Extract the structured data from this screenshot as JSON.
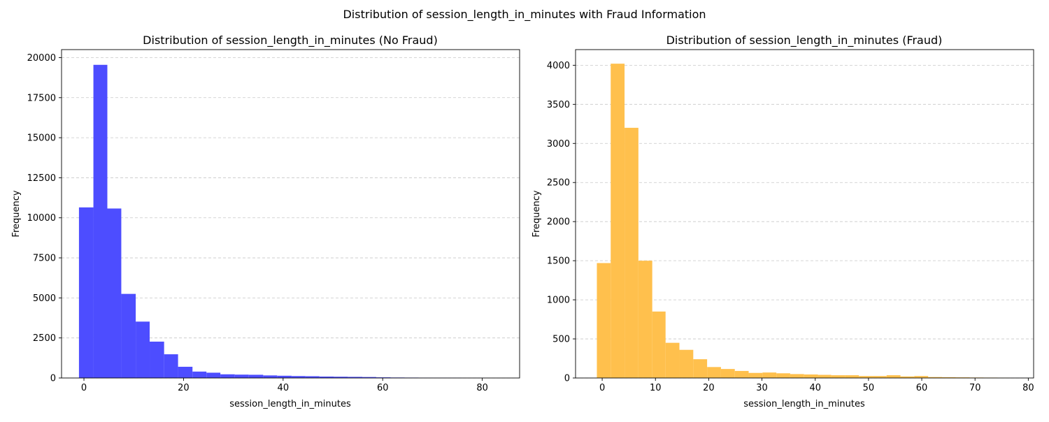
{
  "figure": {
    "suptitle": "Distribution of session_length_in_minutes with Fraud Information"
  },
  "chart_data": [
    {
      "type": "bar",
      "title": "Distribution of session_length_in_minutes (No Fraud)",
      "xlabel": "session_length_in_minutes",
      "ylabel": "Frequency",
      "color": "#4d4dff",
      "grid": "y-dashed",
      "xlim": [
        -4.5,
        87.5
      ],
      "ylim": [
        0,
        20500
      ],
      "xticks": [
        0,
        20,
        40,
        60,
        80
      ],
      "yticks": [
        0,
        2500,
        5000,
        7500,
        10000,
        12500,
        15000,
        17500,
        20000
      ],
      "bins": [
        {
          "x0": -1.0,
          "x1": 1.9,
          "count": 10650
        },
        {
          "x0": 1.9,
          "x1": 4.7,
          "count": 19550
        },
        {
          "x0": 4.7,
          "x1": 7.5,
          "count": 10580
        },
        {
          "x0": 7.5,
          "x1": 10.4,
          "count": 5250
        },
        {
          "x0": 10.4,
          "x1": 13.2,
          "count": 3520
        },
        {
          "x0": 13.2,
          "x1": 16.1,
          "count": 2270
        },
        {
          "x0": 16.1,
          "x1": 18.9,
          "count": 1480
        },
        {
          "x0": 18.9,
          "x1": 21.8,
          "count": 700
        },
        {
          "x0": 21.8,
          "x1": 24.6,
          "count": 400
        },
        {
          "x0": 24.6,
          "x1": 27.4,
          "count": 330
        },
        {
          "x0": 27.4,
          "x1": 30.3,
          "count": 230
        },
        {
          "x0": 30.3,
          "x1": 33.1,
          "count": 210
        },
        {
          "x0": 33.1,
          "x1": 36.0,
          "count": 200
        },
        {
          "x0": 36.0,
          "x1": 38.8,
          "count": 160
        },
        {
          "x0": 38.8,
          "x1": 41.7,
          "count": 140
        },
        {
          "x0": 41.7,
          "x1": 44.5,
          "count": 120
        },
        {
          "x0": 44.5,
          "x1": 47.3,
          "count": 110
        },
        {
          "x0": 47.3,
          "x1": 50.2,
          "count": 90
        },
        {
          "x0": 50.2,
          "x1": 53.0,
          "count": 80
        },
        {
          "x0": 53.0,
          "x1": 55.9,
          "count": 70
        },
        {
          "x0": 55.9,
          "x1": 58.7,
          "count": 60
        },
        {
          "x0": 58.7,
          "x1": 61.6,
          "count": 40
        },
        {
          "x0": 61.6,
          "x1": 64.4,
          "count": 30
        },
        {
          "x0": 64.4,
          "x1": 67.2,
          "count": 25
        },
        {
          "x0": 67.2,
          "x1": 70.1,
          "count": 20
        },
        {
          "x0": 70.1,
          "x1": 72.9,
          "count": 15
        },
        {
          "x0": 72.9,
          "x1": 75.8,
          "count": 12
        },
        {
          "x0": 75.8,
          "x1": 78.6,
          "count": 6
        },
        {
          "x0": 78.6,
          "x1": 81.5,
          "count": 4
        },
        {
          "x0": 81.5,
          "x1": 84.3,
          "count": 2
        }
      ]
    },
    {
      "type": "bar",
      "title": "Distribution of session_length_in_minutes (Fraud)",
      "xlabel": "session_length_in_minutes",
      "ylabel": "Frequency",
      "color": "#ffc04d",
      "grid": "y-dashed",
      "xlim": [
        -5.0,
        81.0
      ],
      "ylim": [
        0,
        4200
      ],
      "xticks": [
        0,
        10,
        20,
        30,
        40,
        50,
        60,
        70,
        80
      ],
      "yticks": [
        0,
        500,
        1000,
        1500,
        2000,
        2500,
        3000,
        3500,
        4000
      ],
      "bins": [
        {
          "x0": -1.0,
          "x1": 1.6,
          "count": 1470
        },
        {
          "x0": 1.6,
          "x1": 4.2,
          "count": 4020
        },
        {
          "x0": 4.2,
          "x1": 6.8,
          "count": 3200
        },
        {
          "x0": 6.8,
          "x1": 9.4,
          "count": 1500
        },
        {
          "x0": 9.4,
          "x1": 11.9,
          "count": 850
        },
        {
          "x0": 11.9,
          "x1": 14.5,
          "count": 450
        },
        {
          "x0": 14.5,
          "x1": 17.1,
          "count": 360
        },
        {
          "x0": 17.1,
          "x1": 19.7,
          "count": 240
        },
        {
          "x0": 19.7,
          "x1": 22.3,
          "count": 140
        },
        {
          "x0": 22.3,
          "x1": 24.9,
          "count": 115
        },
        {
          "x0": 24.9,
          "x1": 27.5,
          "count": 90
        },
        {
          "x0": 27.5,
          "x1": 30.1,
          "count": 65
        },
        {
          "x0": 30.1,
          "x1": 32.7,
          "count": 70
        },
        {
          "x0": 32.7,
          "x1": 35.3,
          "count": 60
        },
        {
          "x0": 35.3,
          "x1": 37.9,
          "count": 50
        },
        {
          "x0": 37.9,
          "x1": 40.5,
          "count": 45
        },
        {
          "x0": 40.5,
          "x1": 43.0,
          "count": 40
        },
        {
          "x0": 43.0,
          "x1": 45.6,
          "count": 35
        },
        {
          "x0": 45.6,
          "x1": 48.2,
          "count": 35
        },
        {
          "x0": 48.2,
          "x1": 50.8,
          "count": 25
        },
        {
          "x0": 50.8,
          "x1": 53.4,
          "count": 25
        },
        {
          "x0": 53.4,
          "x1": 56.0,
          "count": 35
        },
        {
          "x0": 56.0,
          "x1": 58.6,
          "count": 20
        },
        {
          "x0": 58.6,
          "x1": 61.2,
          "count": 25
        },
        {
          "x0": 61.2,
          "x1": 63.8,
          "count": 12
        },
        {
          "x0": 63.8,
          "x1": 66.4,
          "count": 10
        },
        {
          "x0": 66.4,
          "x1": 69.0,
          "count": 8
        },
        {
          "x0": 69.0,
          "x1": 71.6,
          "count": 6
        },
        {
          "x0": 71.6,
          "x1": 74.2,
          "count": 5
        },
        {
          "x0": 74.2,
          "x1": 76.5,
          "count": 3
        }
      ]
    }
  ]
}
